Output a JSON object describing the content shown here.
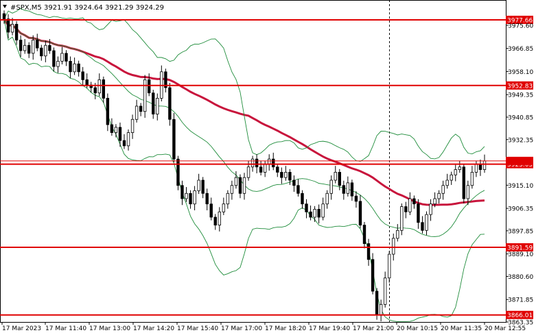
{
  "header": {
    "symbol": "#SPX,M5",
    "ohlc": "3921.91 3924.64 3921.29 3924.29"
  },
  "colors": {
    "candle": "#000000",
    "bollinger": "#1e8c3a",
    "ma": "#c8143c",
    "level_line": "#e00000",
    "level_box": "#e00000",
    "price_box": "#e00000",
    "grid": "#000000"
  },
  "chart_data": {
    "type": "candlestick",
    "ylim": [
      3863.35,
      3980.5
    ],
    "y_ticks": [
      3975.6,
      3966.85,
      3958.1,
      3949.35,
      3940.85,
      3932.35,
      3915.1,
      3906.35,
      3897.85,
      3889.1,
      3880.6,
      3871.85,
      3863.35
    ],
    "x_ticks": [
      "17 Mar 2023",
      "17 Mar 11:40",
      "17 Mar 13:00",
      "17 Mar 14:20",
      "17 Mar 15:40",
      "17 Mar 17:00",
      "17 Mar 18:20",
      "17 Mar 19:40",
      "17 Mar 21:00",
      "20 Mar 10:15",
      "20 Mar 11:35",
      "20 Mar 12:55"
    ],
    "levels": [
      {
        "value": 3977.66,
        "label": "3977.66"
      },
      {
        "value": 3952.83,
        "label": "3952.83"
      },
      {
        "value": 3923.05,
        "label": "3923.05"
      },
      {
        "value": 3891.59,
        "label": "3891.59"
      },
      {
        "value": 3866.01,
        "label": "3866.01"
      }
    ],
    "current_price": 3924.29,
    "closes": [
      3978,
      3973,
      3976,
      3970,
      3966,
      3968,
      3965,
      3970,
      3967,
      3964,
      3968,
      3966,
      3960,
      3962,
      3965,
      3962,
      3958,
      3961,
      3958,
      3955,
      3953,
      3952,
      3950,
      3955,
      3948,
      3938,
      3935,
      3937,
      3932,
      3930,
      3935,
      3940,
      3945,
      3943,
      3955,
      3950,
      3942,
      3948,
      3958,
      3952,
      3940,
      3925,
      3915,
      3910,
      3912,
      3908,
      3913,
      3917,
      3912,
      3908,
      3903,
      3900,
      3905,
      3908,
      3912,
      3915,
      3918,
      3912,
      3918,
      3922,
      3925,
      3922,
      3920,
      3923,
      3925,
      3922,
      3920,
      3918,
      3920,
      3917,
      3915,
      3912,
      3908,
      3905,
      3903,
      3906,
      3903,
      3908,
      3912,
      3917,
      3920,
      3915,
      3912,
      3916,
      3911,
      3909,
      3900,
      3893,
      3887,
      3875,
      3866,
      3870,
      3880,
      3889,
      3895,
      3898,
      3907,
      3905,
      3910,
      3908,
      3901,
      3898,
      3904,
      3908,
      3910,
      3912,
      3915,
      3917,
      3919,
      3921,
      3922,
      3910,
      3915,
      3920,
      3923,
      3921,
      3924.29
    ]
  }
}
